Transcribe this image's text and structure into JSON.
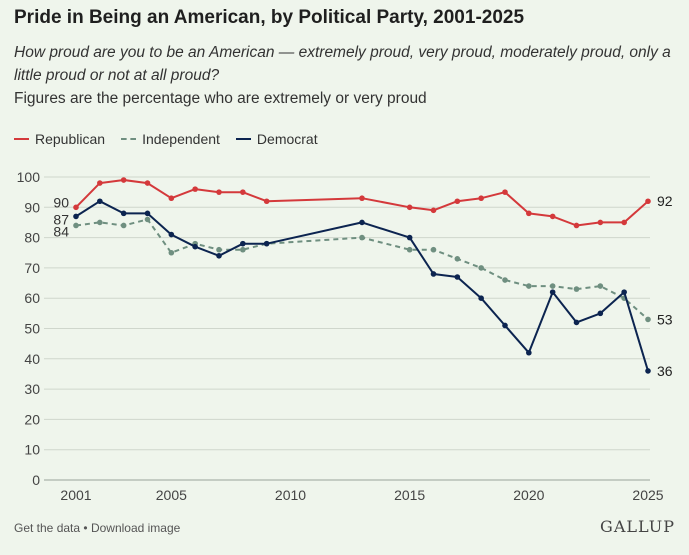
{
  "header": {
    "title": "Pride in Being an American, by Political Party, 2001-2025",
    "subtitle": "How proud are you to be an American — extremely proud, very proud, moderately proud, only a little proud or not at all proud?",
    "note": "Figures are the percentage who are extremely or very proud"
  },
  "footer": {
    "get_data": "Get the data",
    "separator": "•",
    "download": "Download image",
    "brand": "GALLUP"
  },
  "colors": {
    "republican": "#d4393b",
    "independent": "#6f8f80",
    "democrat": "#0c2450",
    "grid": "#cfd6cc",
    "axis_text": "#444444"
  },
  "chart_data": {
    "type": "line",
    "title": "Pride in Being an American, by Political Party, 2001-2025",
    "xlabel": "",
    "ylabel": "",
    "xlim": [
      2001,
      2025
    ],
    "ylim": [
      0,
      100
    ],
    "yticks": [
      0,
      10,
      20,
      30,
      40,
      50,
      60,
      70,
      80,
      90,
      100
    ],
    "xticks": [
      2001,
      2005,
      2010,
      2015,
      2020,
      2025
    ],
    "grid": true,
    "legend": "top-left",
    "x": [
      2001,
      2002,
      2003,
      2004,
      2005,
      2006,
      2007,
      2008,
      2009,
      2013,
      2015,
      2016,
      2017,
      2018,
      2019,
      2020,
      2021,
      2022,
      2023,
      2024,
      2025
    ],
    "series": [
      {
        "name": "Republican",
        "key": "republican",
        "style": "solid",
        "values": [
          90,
          98,
          99,
          98,
          93,
          96,
          95,
          95,
          92,
          93,
          90,
          89,
          92,
          93,
          95,
          88,
          87,
          84,
          85,
          85,
          92
        ],
        "start_label": "90",
        "end_label": "92"
      },
      {
        "name": "Independent",
        "key": "independent",
        "style": "dashed",
        "values": [
          84,
          85,
          84,
          86,
          75,
          78,
          76,
          76,
          78,
          80,
          76,
          76,
          73,
          70,
          66,
          64,
          64,
          63,
          64,
          60,
          53
        ],
        "start_label": "84",
        "end_label": "53"
      },
      {
        "name": "Democrat",
        "key": "democrat",
        "style": "solid",
        "values": [
          87,
          92,
          88,
          88,
          81,
          77,
          74,
          78,
          78,
          85,
          80,
          68,
          67,
          60,
          51,
          42,
          62,
          52,
          55,
          62,
          36
        ],
        "start_label": "87",
        "end_label": "36"
      }
    ]
  }
}
